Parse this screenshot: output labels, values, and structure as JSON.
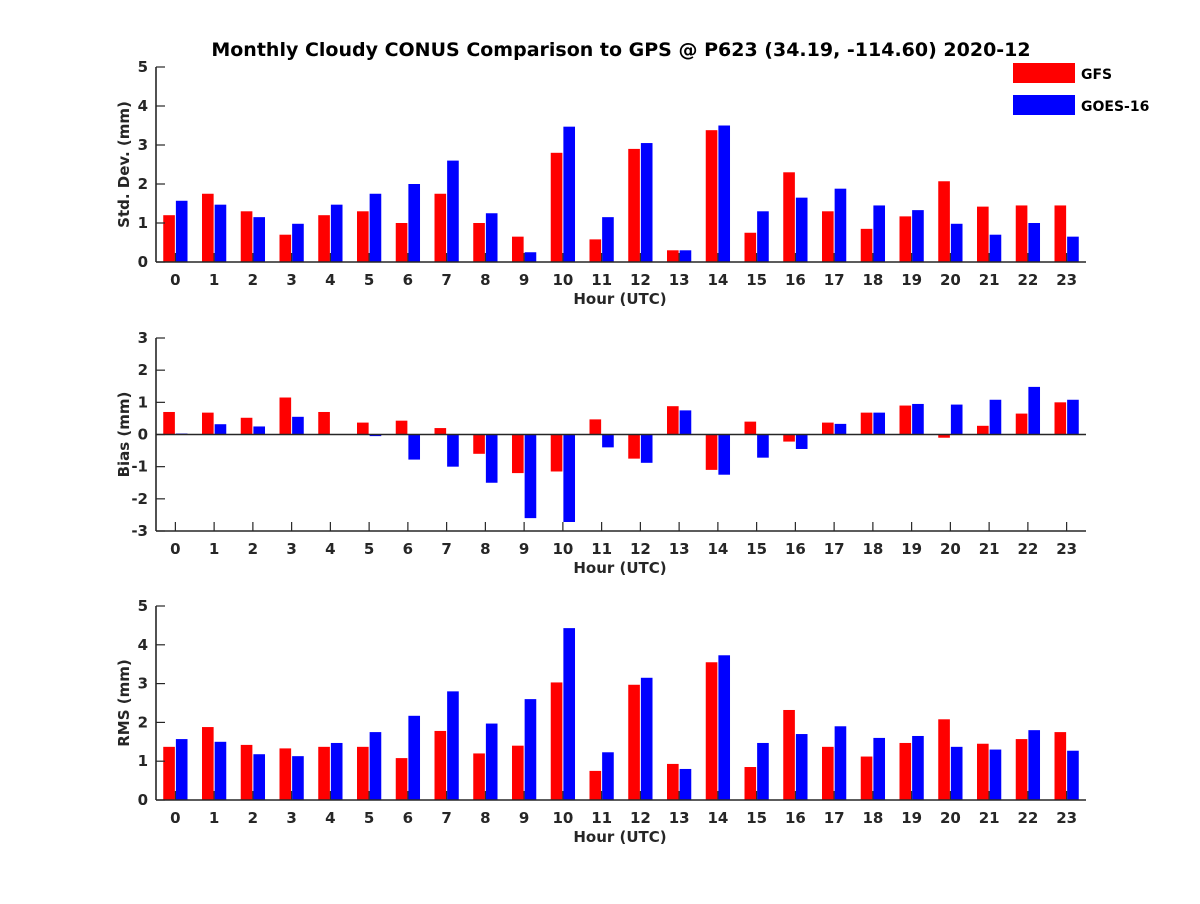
{
  "figure": {
    "title": "Monthly Cloudy CONUS Comparison to GPS @ P623 (34.19, -114.60) 2020-12"
  },
  "legend": {
    "placement": "top-right",
    "items": [
      {
        "label": "GFS",
        "color": "#ff0000"
      },
      {
        "label": "GOES-16",
        "color": "#0000ff"
      }
    ]
  },
  "chart_data": [
    {
      "type": "bar",
      "xlabel": "Hour (UTC)",
      "ylabel": "Std. Dev. (mm)",
      "ylim": [
        0,
        5
      ],
      "yticks": [
        0,
        1,
        2,
        3,
        4,
        5
      ],
      "grid": false,
      "categories": [
        "0",
        "1",
        "2",
        "3",
        "4",
        "5",
        "6",
        "7",
        "8",
        "9",
        "10",
        "11",
        "12",
        "13",
        "14",
        "15",
        "16",
        "17",
        "18",
        "19",
        "20",
        "21",
        "22",
        "23"
      ],
      "series": [
        {
          "name": "GFS",
          "color": "#ff0000",
          "values": [
            1.2,
            1.75,
            1.3,
            0.7,
            1.2,
            1.3,
            1.0,
            1.75,
            1.0,
            0.65,
            2.8,
            0.58,
            2.9,
            0.3,
            3.38,
            0.75,
            2.3,
            1.3,
            0.85,
            1.17,
            2.07,
            1.42,
            1.45,
            1.45
          ]
        },
        {
          "name": "GOES-16",
          "color": "#0000ff",
          "values": [
            1.57,
            1.47,
            1.15,
            0.98,
            1.47,
            1.75,
            2.0,
            2.6,
            1.25,
            0.25,
            3.47,
            1.15,
            3.05,
            0.3,
            3.5,
            1.3,
            1.65,
            1.88,
            1.45,
            1.33,
            0.98,
            0.7,
            1.0,
            0.65
          ]
        }
      ]
    },
    {
      "type": "bar",
      "xlabel": "Hour (UTC)",
      "ylabel": "Bias (mm)",
      "ylim": [
        -3,
        3
      ],
      "yticks": [
        -3,
        -2,
        -1,
        0,
        1,
        2,
        3
      ],
      "grid": false,
      "zero_line": true,
      "categories": [
        "0",
        "1",
        "2",
        "3",
        "4",
        "5",
        "6",
        "7",
        "8",
        "9",
        "10",
        "11",
        "12",
        "13",
        "14",
        "15",
        "16",
        "17",
        "18",
        "19",
        "20",
        "21",
        "22",
        "23"
      ],
      "series": [
        {
          "name": "GFS",
          "color": "#ff0000",
          "values": [
            0.7,
            0.68,
            0.52,
            1.15,
            0.7,
            0.37,
            0.43,
            0.2,
            -0.6,
            -1.2,
            -1.15,
            0.47,
            -0.75,
            0.88,
            -1.1,
            0.4,
            -0.22,
            0.37,
            0.68,
            0.9,
            -0.1,
            0.27,
            0.65,
            1.0
          ]
        },
        {
          "name": "GOES-16",
          "color": "#0000ff",
          "values": [
            0.03,
            0.32,
            0.25,
            0.55,
            0.0,
            -0.05,
            -0.78,
            -1.0,
            -1.5,
            -2.6,
            -2.72,
            -0.4,
            -0.88,
            0.75,
            -1.25,
            -0.72,
            -0.45,
            0.33,
            0.68,
            0.95,
            0.93,
            1.08,
            1.48,
            1.08
          ]
        }
      ]
    },
    {
      "type": "bar",
      "xlabel": "Hour (UTC)",
      "ylabel": "RMS (mm)",
      "ylim": [
        0,
        5
      ],
      "yticks": [
        0,
        1,
        2,
        3,
        4,
        5
      ],
      "grid": false,
      "categories": [
        "0",
        "1",
        "2",
        "3",
        "4",
        "5",
        "6",
        "7",
        "8",
        "9",
        "10",
        "11",
        "12",
        "13",
        "14",
        "15",
        "16",
        "17",
        "18",
        "19",
        "20",
        "21",
        "22",
        "23"
      ],
      "series": [
        {
          "name": "GFS",
          "color": "#ff0000",
          "values": [
            1.37,
            1.88,
            1.42,
            1.33,
            1.37,
            1.37,
            1.08,
            1.78,
            1.2,
            1.4,
            3.03,
            0.75,
            2.97,
            0.93,
            3.55,
            0.85,
            2.32,
            1.37,
            1.12,
            1.47,
            2.08,
            1.45,
            1.57,
            1.75
          ]
        },
        {
          "name": "GOES-16",
          "color": "#0000ff",
          "values": [
            1.57,
            1.5,
            1.18,
            1.13,
            1.47,
            1.75,
            2.17,
            2.8,
            1.97,
            2.6,
            4.43,
            1.23,
            3.15,
            0.8,
            3.73,
            1.47,
            1.7,
            1.9,
            1.6,
            1.65,
            1.37,
            1.3,
            1.8,
            1.27
          ]
        }
      ]
    }
  ]
}
